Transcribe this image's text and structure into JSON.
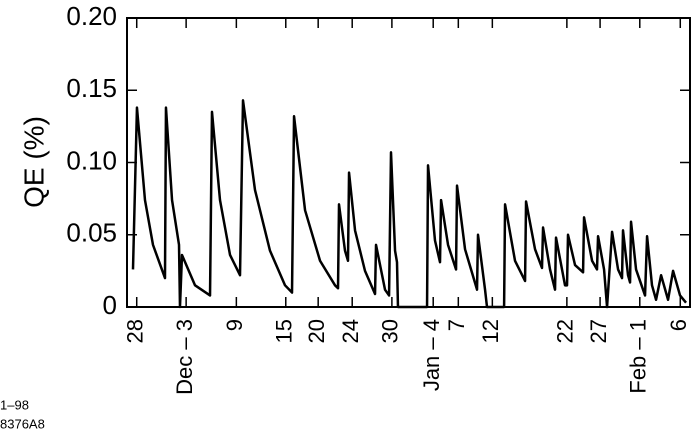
{
  "chart_data": {
    "type": "line",
    "y_label": "QE   (%)",
    "notes": [
      "1–98",
      "8376A8"
    ],
    "xlim": [
      0,
      69.5
    ],
    "ylim": [
      0,
      0.2
    ],
    "yticks": [
      0,
      0.05,
      {
        "value": 0.1,
        "label": "0.10"
      },
      0.15,
      {
        "value": 0.2,
        "label": "0.20"
      }
    ],
    "xticks": [
      {
        "value": 1.2,
        "label": "28"
      },
      {
        "value": 7.3,
        "label": "Dec – 3"
      },
      {
        "value": 13.5,
        "label": "9"
      },
      {
        "value": 19.6,
        "label": "15"
      },
      {
        "value": 23.6,
        "label": "20"
      },
      {
        "value": 27.8,
        "label": "24"
      },
      {
        "value": 32.7,
        "label": "30"
      },
      {
        "value": 37.8,
        "label": "Jan – 4"
      },
      {
        "value": 40.9,
        "label": "7"
      },
      {
        "value": 45.1,
        "label": "12"
      },
      {
        "value": 54.3,
        "label": "22"
      },
      {
        "value": 58.4,
        "label": "27"
      },
      {
        "value": 63.3,
        "label": "Feb – 1"
      },
      {
        "value": 68.3,
        "label": "6"
      }
    ],
    "series": [
      {
        "color": "#000000",
        "x": [
          0.74,
          1.23,
          2.22,
          3.21,
          4.69,
          4.81,
          5.56,
          6.42,
          6.54,
          6.79,
          8.4,
          10.25,
          10.49,
          11.48,
          12.72,
          13.95,
          14.32,
          15.8,
          17.65,
          19.51,
          20.37,
          20.62,
          21.98,
          23.83,
          25.68,
          26.05,
          26.17,
          26.91,
          27.28,
          27.41,
          28.15,
          29.38,
          30.62,
          30.74,
          31.85,
          32.35,
          32.59,
          33.09,
          33.33,
          33.45,
          37.04,
          37.16,
          38.02,
          38.64,
          38.77,
          39.63,
          40.62,
          40.74,
          41.73,
          43.21,
          43.33,
          44.2,
          44.44,
          45.43,
          46.55,
          46.67,
          47.9,
          49.14,
          49.26,
          50.37,
          51.23,
          51.36,
          52.22,
          52.84,
          52.96,
          54.07,
          54.32,
          54.44,
          55.31,
          56.3,
          56.42,
          57.41,
          58.02,
          58.15,
          58.89,
          59.26,
          59.88,
          60.62,
          61.11,
          61.23,
          61.85,
          62.1,
          62.22,
          62.84,
          63.95,
          64.2,
          64.81,
          65.31,
          65.93,
          66.79,
          67.41,
          68.27,
          69.01
        ],
        "values": [
          0.026,
          0.138,
          0.074,
          0.043,
          0.02,
          0.138,
          0.074,
          0.043,
          0,
          0.036,
          0.015,
          0.008,
          0.135,
          0.074,
          0.036,
          0.022,
          0.143,
          0.081,
          0.039,
          0.015,
          0.01,
          0.132,
          0.067,
          0.032,
          0.015,
          0.013,
          0.071,
          0.039,
          0.032,
          0.093,
          0.053,
          0.025,
          0.009,
          0.043,
          0.012,
          0.008,
          0.107,
          0.039,
          0.031,
          0,
          0,
          0.098,
          0.046,
          0.031,
          0.074,
          0.043,
          0.026,
          0.084,
          0.04,
          0.012,
          0.05,
          0.012,
          0,
          0,
          0,
          0.071,
          0.032,
          0.018,
          0.073,
          0.04,
          0.027,
          0.055,
          0.026,
          0.012,
          0.048,
          0.015,
          0.015,
          0.05,
          0.029,
          0.024,
          0.062,
          0.032,
          0.026,
          0.049,
          0.026,
          0,
          0.052,
          0.026,
          0.02,
          0.053,
          0.022,
          0.017,
          0.059,
          0.026,
          0.008,
          0.049,
          0.015,
          0.005,
          0.022,
          0.005,
          0.025,
          0.008,
          0.003
        ]
      }
    ]
  }
}
